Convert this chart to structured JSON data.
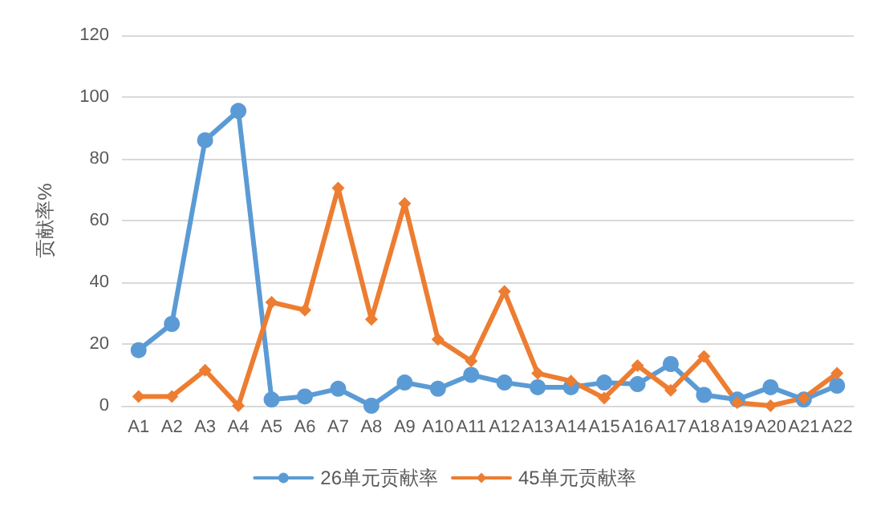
{
  "chart_data": {
    "type": "line",
    "ylabel": "贡献率%",
    "categories": [
      "A1",
      "A2",
      "A3",
      "A4",
      "A5",
      "A6",
      "A7",
      "A8",
      "A9",
      "A10",
      "A11",
      "A12",
      "A13",
      "A14",
      "A15",
      "A16",
      "A17",
      "A18",
      "A19",
      "A20",
      "A21",
      "A22"
    ],
    "series": [
      {
        "name": "26单元贡献率",
        "color": "#5b9bd5",
        "marker": "circle",
        "values": [
          18,
          26.5,
          86,
          95.5,
          2,
          3,
          5.5,
          0,
          7.5,
          5.5,
          10,
          7.5,
          6,
          6,
          7.5,
          7,
          13.5,
          3.5,
          2,
          6,
          2,
          6.5
        ]
      },
      {
        "name": "45单元贡献率",
        "color": "#ed7d31",
        "marker": "diamond",
        "values": [
          3,
          3,
          11.5,
          0,
          33.5,
          31,
          70.5,
          28,
          65.5,
          21.5,
          14.5,
          37,
          10.5,
          8,
          2.5,
          13,
          5,
          16,
          1,
          0,
          2.5,
          10.5
        ]
      }
    ],
    "ylim": [
      0,
      120
    ],
    "yticks": [
      0,
      20,
      40,
      60,
      80,
      100,
      120
    ],
    "grid": "y",
    "legend": "bottom",
    "line_style": "solid"
  }
}
